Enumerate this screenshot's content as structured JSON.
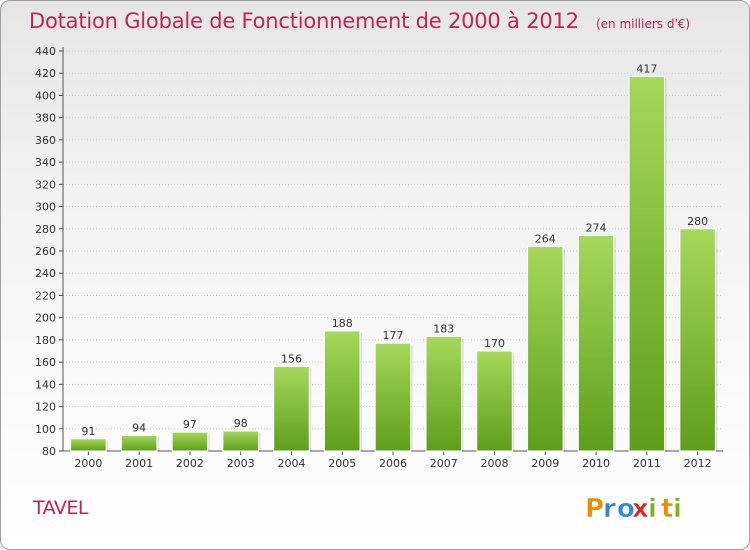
{
  "header": {
    "title": "Dotation Globale de Fonctionnement de 2000 à 2012",
    "subtitle": "(en milliers d'€)"
  },
  "footer": {
    "commune": "TAVEL",
    "logo_text": "Proxiti"
  },
  "colors": {
    "accent": "#c0245a",
    "bar_light": "#a6d85a",
    "bar_dark": "#5e9e1a",
    "logo_orange": "#f08a00",
    "logo_blue": "#2a8ad4",
    "logo_green": "#7ab51d",
    "logo_red": "#e2231a"
  },
  "chart_data": {
    "type": "bar",
    "title": "Dotation Globale de Fonctionnement de 2000 à 2012",
    "subtitle": "(en milliers d'€)",
    "xlabel": "",
    "ylabel": "",
    "categories": [
      "2000",
      "2001",
      "2002",
      "2003",
      "2004",
      "2005",
      "2006",
      "2007",
      "2008",
      "2009",
      "2010",
      "2011",
      "2012"
    ],
    "values": [
      91,
      94,
      97,
      98,
      156,
      188,
      177,
      183,
      170,
      264,
      274,
      417,
      280
    ],
    "ylim": [
      80,
      440
    ],
    "yticks": [
      80,
      100,
      120,
      140,
      160,
      180,
      200,
      220,
      240,
      260,
      280,
      300,
      320,
      340,
      360,
      380,
      400,
      420,
      440
    ],
    "grid": true,
    "legend": "none",
    "data_labels": true
  }
}
